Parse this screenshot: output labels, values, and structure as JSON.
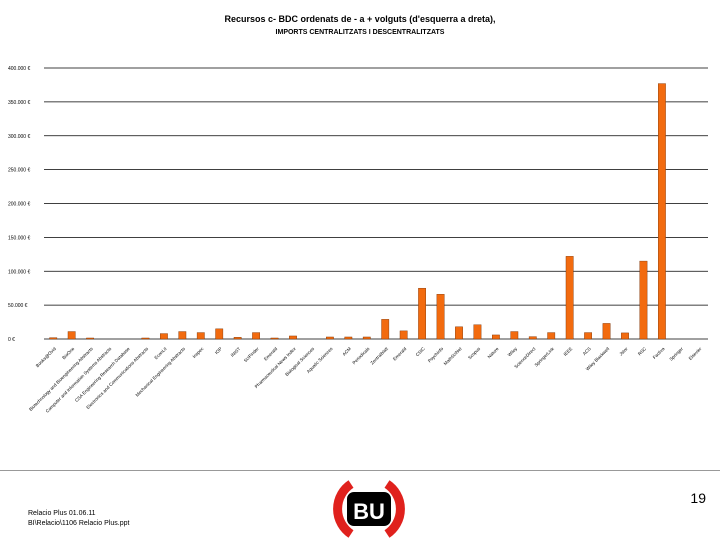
{
  "chart_data": {
    "type": "bar",
    "title": "Recursos c- BDC ordenats de - a + volguts (d'esquerra a dreta),",
    "subtitle": "IMPORTS CENTRALITZATS I DESCENTRALITZATS",
    "xlabel": "",
    "ylabel": "",
    "ylim": [
      0,
      400000
    ],
    "yticks": [
      0,
      50000,
      100000,
      150000,
      200000,
      250000,
      300000,
      350000,
      400000
    ],
    "ytick_labels": [
      "0 €",
      "50.000 €",
      "100.000 €",
      "150.000 €",
      "200.000 €",
      "250.000 €",
      "300.000 €",
      "350.000 €",
      "400.000 €"
    ],
    "grid": true,
    "color": "#f26b0f",
    "categories": [
      "Books@Ovid",
      "BioOne",
      "Biotechnology and Bioengineering Abstracts",
      "Computer and Information Systems Abstracts",
      "CSA Engineering Research Database",
      "Electronics and Communications Abstracts",
      "EconLit",
      "Mechanical Engineering Abstracts",
      "Inspec",
      "IOP",
      "INIST",
      "SciFinder",
      "Emerald",
      "Pharmaceutical News Index",
      "Biological Sciences",
      "Aquatic Sciences",
      "ACM",
      "Periodicals",
      "Zentralblatt",
      "Emerald",
      "CSIC",
      "Psychinfo",
      "MathSciNet",
      "Scopus",
      "Nature",
      "Wiley",
      "ScienceDirect",
      "SpringerLink",
      "IEEE",
      "ACS",
      "Wiley Blackwell",
      "Jstor",
      "RSC",
      "Factiva",
      "Springer",
      "Elsevier"
    ],
    "values": [
      2000,
      11000,
      1500,
      0,
      0,
      1500,
      8000,
      11000,
      9500,
      15000,
      2500,
      9500,
      1500,
      4500,
      0,
      3000,
      3000,
      3000,
      29000,
      12000,
      75000,
      66000,
      18000,
      21000,
      6000,
      11000,
      3500,
      9500,
      122000,
      9500,
      23000,
      9000,
      115000,
      377000,
      0,
      0
    ]
  },
  "footer": {
    "page_number": "19",
    "line1": "Relacio Plus 01.06.11",
    "line2": "BI\\Relacio\\1106 Relacio Plus.ppt",
    "logo_text": "BU"
  }
}
